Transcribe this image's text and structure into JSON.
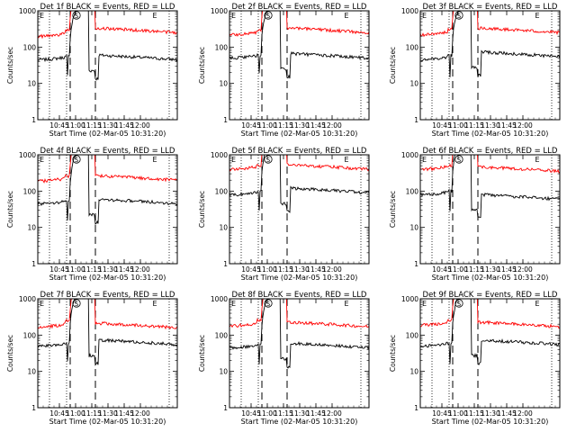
{
  "chart_data": [
    {
      "type": "line",
      "title": "Det 1f BLACK = Events, RED = LLD",
      "xlabel": "Start Time (02-Mar-05 10:31:20)",
      "ylabel": "Counts/sec",
      "x_ticks": [
        "10:45",
        "11:00",
        "11:15",
        "11:30",
        "11:45",
        "12:00"
      ],
      "y_ticks": [
        "1",
        "10",
        "100",
        "1000"
      ],
      "ylim": [
        1,
        1000
      ],
      "y_scale": "log",
      "markers": [
        "S",
        "E"
      ],
      "series": [
        {
          "name": "Events",
          "color": "#000000",
          "level_before": 45,
          "level_after": 45,
          "peak_before": 55
        },
        {
          "name": "LLD",
          "color": "#ff0000",
          "level_before": 200,
          "level_after": 250,
          "peak_before": 300
        }
      ]
    },
    {
      "type": "line",
      "title": "Det 2f BLACK = Events, RED = LLD",
      "xlabel": "Start Time (02-Mar-05 10:31:20)",
      "ylabel": "Counts/sec",
      "x_ticks": [
        "10:45",
        "11:00",
        "11:15",
        "11:30",
        "11:45",
        "12:00"
      ],
      "y_ticks": [
        "1",
        "10",
        "100",
        "1000"
      ],
      "ylim": [
        1,
        1000
      ],
      "y_scale": "log",
      "markers": [
        "S",
        "E"
      ],
      "series": [
        {
          "name": "Events",
          "color": "#000000",
          "level_before": 50,
          "level_after": 50,
          "peak_before": 60
        },
        {
          "name": "LLD",
          "color": "#ff0000",
          "level_before": 220,
          "level_after": 250,
          "peak_before": 300
        }
      ]
    },
    {
      "type": "line",
      "title": "Det 3f BLACK = Events, RED = LLD",
      "xlabel": "Start Time (02-Mar-05 10:31:20)",
      "ylabel": "Counts/sec",
      "x_ticks": [
        "10:45",
        "11:00",
        "11:15",
        "11:30",
        "11:45",
        "12:00"
      ],
      "y_ticks": [
        "1",
        "10",
        "100",
        "1000"
      ],
      "ylim": [
        1,
        1000
      ],
      "y_scale": "log",
      "markers": [
        "S",
        "E"
      ],
      "series": [
        {
          "name": "Events",
          "color": "#000000",
          "level_before": 45,
          "level_after": 55,
          "peak_before": 60
        },
        {
          "name": "LLD",
          "color": "#ff0000",
          "level_before": 220,
          "level_after": 250,
          "peak_before": 300
        }
      ]
    },
    {
      "type": "line",
      "title": "Det 4f BLACK = Events, RED = LLD",
      "xlabel": "Start Time (02-Mar-05 10:31:20)",
      "ylabel": "Counts/sec",
      "x_ticks": [
        "10:45",
        "11:00",
        "11:15",
        "11:30",
        "11:45",
        "12:00"
      ],
      "y_ticks": [
        "1",
        "10",
        "100",
        "1000"
      ],
      "ylim": [
        1,
        1000
      ],
      "y_scale": "log",
      "markers": [
        "S",
        "E"
      ],
      "series": [
        {
          "name": "Events",
          "color": "#000000",
          "level_before": 45,
          "level_after": 45,
          "peak_before": 55
        },
        {
          "name": "LLD",
          "color": "#ff0000",
          "level_before": 190,
          "level_after": 200,
          "peak_before": 260
        }
      ]
    },
    {
      "type": "line",
      "title": "Det 5f BLACK = Events, RED = LLD",
      "xlabel": "Start Time (02-Mar-05 10:31:20)",
      "ylabel": "Counts/sec",
      "x_ticks": [
        "10:45",
        "11:00",
        "11:15",
        "11:30",
        "11:45",
        "12:00"
      ],
      "y_ticks": [
        "1",
        "10",
        "100",
        "1000"
      ],
      "ylim": [
        1,
        1000
      ],
      "y_scale": "log",
      "markers": [
        "S",
        "E"
      ],
      "series": [
        {
          "name": "Events",
          "color": "#000000",
          "level_before": 80,
          "level_after": 90,
          "peak_before": 100
        },
        {
          "name": "LLD",
          "color": "#ff0000",
          "level_before": 400,
          "level_after": 400,
          "peak_before": 500
        }
      ]
    },
    {
      "type": "line",
      "title": "Det 6f BLACK = Events, RED = LLD",
      "xlabel": "Start Time (02-Mar-05 10:31:20)",
      "ylabel": "Counts/sec",
      "x_ticks": [
        "10:45",
        "11:00",
        "11:15",
        "11:30",
        "11:45",
        "12:00"
      ],
      "y_ticks": [
        "1",
        "10",
        "100",
        "1000"
      ],
      "ylim": [
        1,
        1000
      ],
      "y_scale": "log",
      "markers": [
        "S",
        "E"
      ],
      "series": [
        {
          "name": "Events",
          "color": "#000000",
          "level_before": 80,
          "level_after": 60,
          "peak_before": 100
        },
        {
          "name": "LLD",
          "color": "#ff0000",
          "level_before": 400,
          "level_after": 350,
          "peak_before": 500
        }
      ]
    },
    {
      "type": "line",
      "title": "Det 7f BLACK = Events, RED = LLD",
      "xlabel": "Start Time (02-Mar-05 10:31:20)",
      "ylabel": "Counts/sec",
      "x_ticks": [
        "10:45",
        "11:00",
        "11:15",
        "11:30",
        "11:45",
        "12:00"
      ],
      "y_ticks": [
        "1",
        "10",
        "100",
        "1000"
      ],
      "ylim": [
        1,
        1000
      ],
      "y_scale": "log",
      "markers": [
        "S",
        "E"
      ],
      "series": [
        {
          "name": "Events",
          "color": "#000000",
          "level_before": 50,
          "level_after": 55,
          "peak_before": 60
        },
        {
          "name": "LLD",
          "color": "#ff0000",
          "level_before": 170,
          "level_after": 160,
          "peak_before": 250
        }
      ]
    },
    {
      "type": "line",
      "title": "Det 8f BLACK = Events, RED = LLD",
      "xlabel": "Start Time (02-Mar-05 10:31:20)",
      "ylabel": "Counts/sec",
      "x_ticks": [
        "10:45",
        "11:00",
        "11:15",
        "11:30",
        "11:45",
        "12:00"
      ],
      "y_ticks": [
        "1",
        "10",
        "100",
        "1000"
      ],
      "ylim": [
        1,
        1000
      ],
      "y_scale": "log",
      "markers": [
        "S",
        "E"
      ],
      "series": [
        {
          "name": "Events",
          "color": "#000000",
          "level_before": 45,
          "level_after": 45,
          "peak_before": 55
        },
        {
          "name": "LLD",
          "color": "#ff0000",
          "level_before": 180,
          "level_after": 170,
          "peak_before": 260
        }
      ]
    },
    {
      "type": "line",
      "title": "Det 9f BLACK = Events, RED = LLD",
      "xlabel": "Start Time (02-Mar-05 10:31:20)",
      "ylabel": "Counts/sec",
      "x_ticks": [
        "10:45",
        "11:00",
        "11:15",
        "11:30",
        "11:45",
        "12:00"
      ],
      "y_ticks": [
        "1",
        "10",
        "100",
        "1000"
      ],
      "ylim": [
        1,
        1000
      ],
      "y_scale": "log",
      "markers": [
        "S",
        "E"
      ],
      "series": [
        {
          "name": "Events",
          "color": "#000000",
          "level_before": 50,
          "level_after": 55,
          "peak_before": 60
        },
        {
          "name": "LLD",
          "color": "#ff0000",
          "level_before": 190,
          "level_after": 170,
          "peak_before": 260
        }
      ]
    }
  ]
}
